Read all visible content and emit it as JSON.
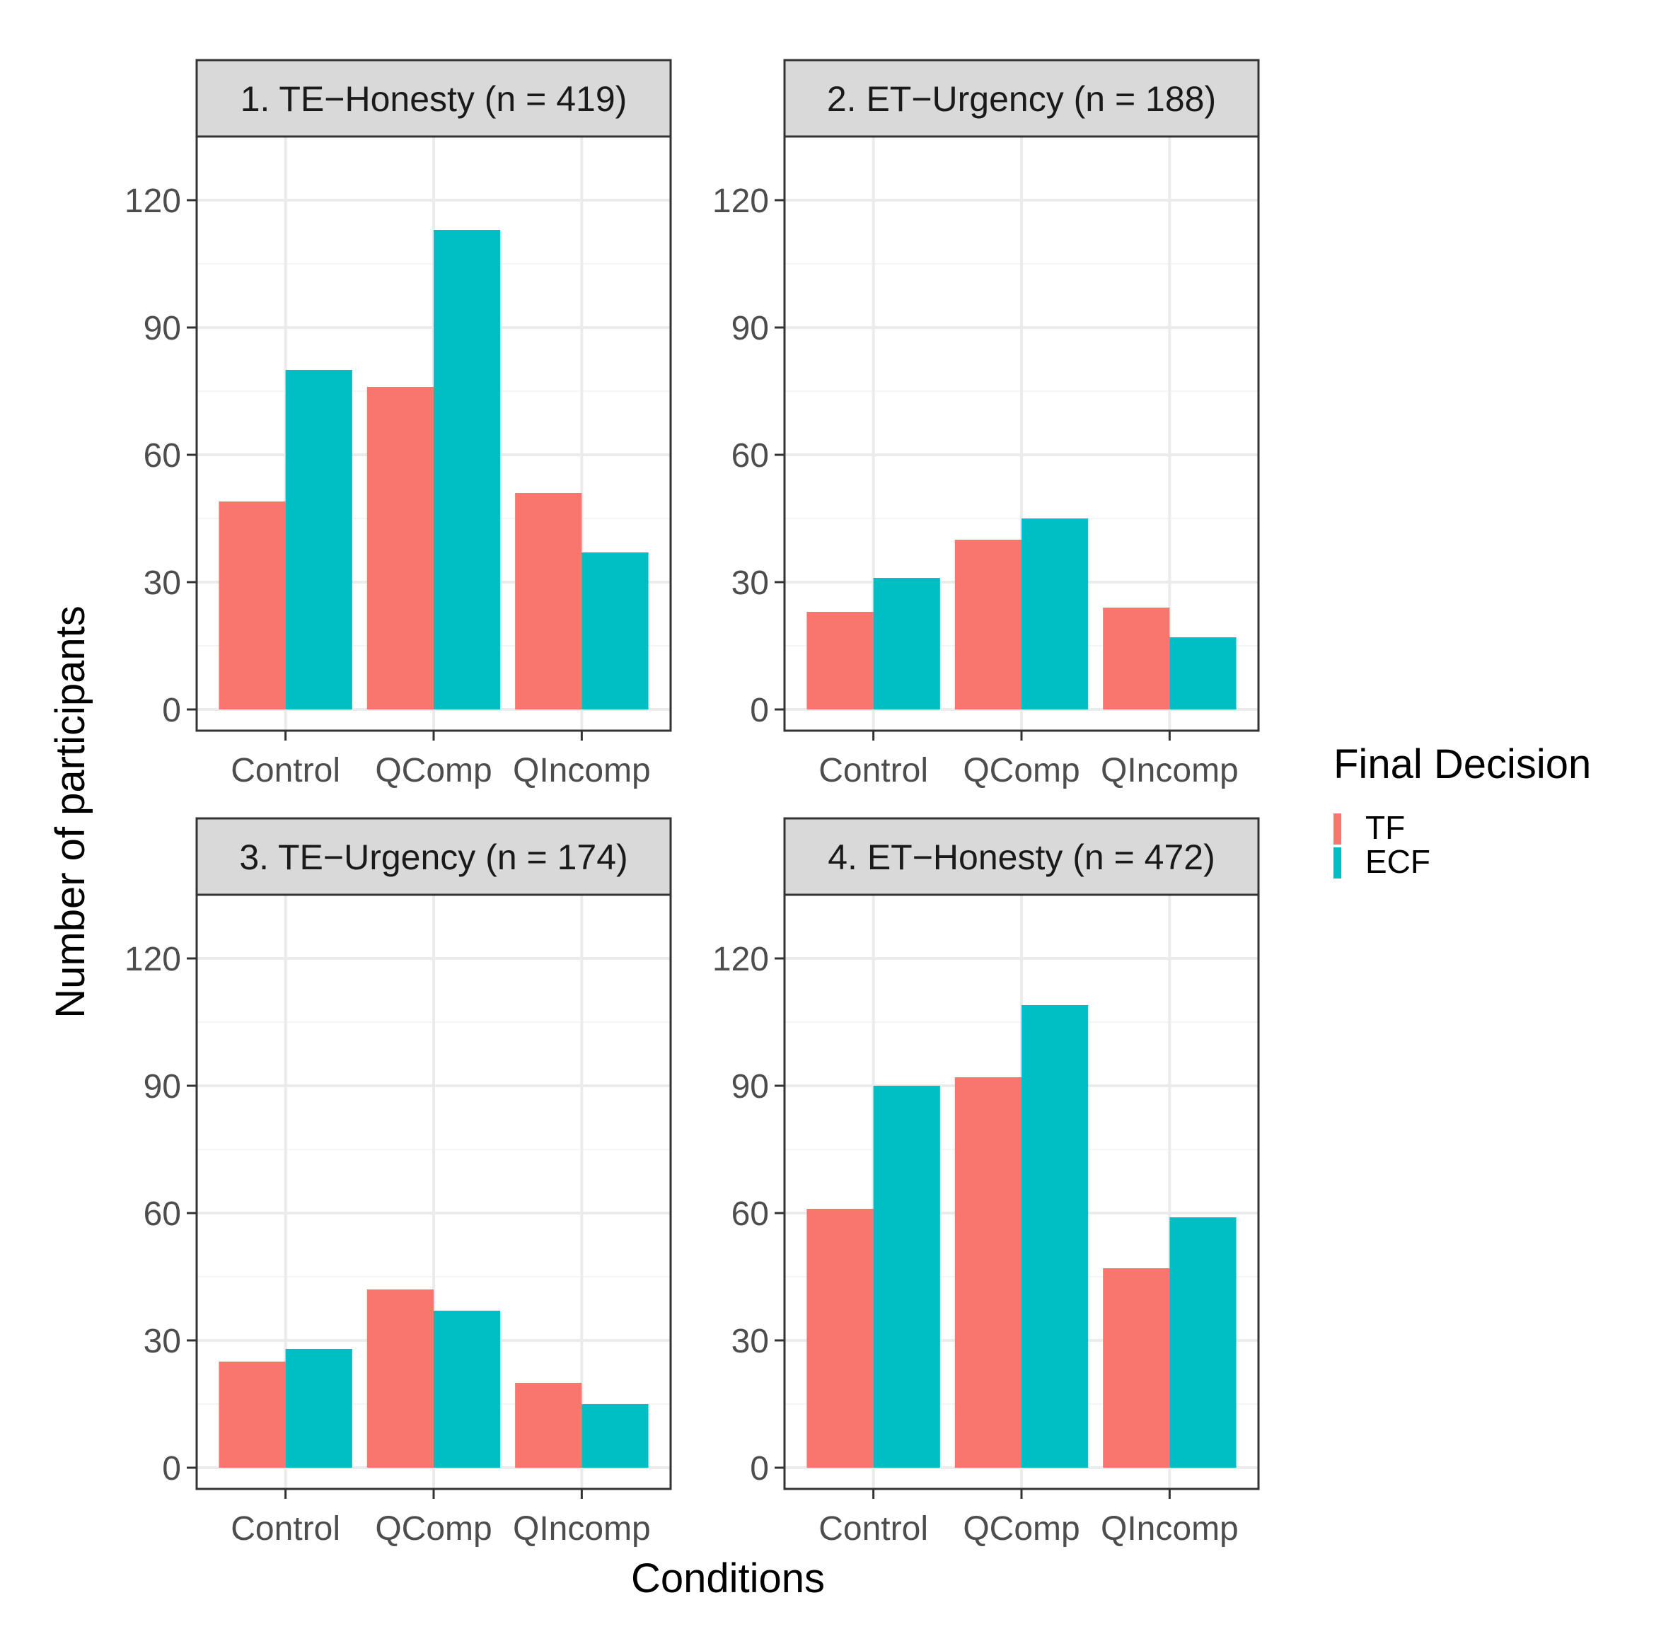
{
  "colors": {
    "TF": "#F8766D",
    "ECF": "#00BFC4",
    "strip_fill": "#D9D9D9",
    "panel_border": "#333333",
    "grid_major": "#EBEBEB",
    "grid_minor": "#F5F5F5",
    "tick_text": "#4D4D4D",
    "axis_title": "#000000"
  },
  "chart_data": {
    "type": "bar",
    "layout": "facet-grid 2x2, grouped bars",
    "xlabel": "Conditions",
    "ylabel": "Number of participants",
    "ylim": [
      -5,
      135
    ],
    "yticks": [
      0,
      30,
      60,
      90,
      120
    ],
    "yticks_labels": [
      "0",
      "30",
      "60",
      "90",
      "120"
    ],
    "grid": true,
    "categories": [
      "Control",
      "QComp",
      "QIncomp"
    ],
    "legend": {
      "title": "Final Decision",
      "position": "right",
      "entries": [
        "TF",
        "ECF"
      ]
    },
    "panels": [
      {
        "title": "1. TE−Honesty (n = 419)",
        "series": [
          {
            "name": "TF",
            "values": [
              49,
              76,
              51
            ]
          },
          {
            "name": "ECF",
            "values": [
              80,
              113,
              37
            ]
          }
        ]
      },
      {
        "title": "2. ET−Urgency (n = 188)",
        "series": [
          {
            "name": "TF",
            "values": [
              23,
              40,
              24
            ]
          },
          {
            "name": "ECF",
            "values": [
              31,
              45,
              17
            ]
          }
        ]
      },
      {
        "title": "3. TE−Urgency (n = 174)",
        "series": [
          {
            "name": "TF",
            "values": [
              25,
              42,
              20
            ]
          },
          {
            "name": "ECF",
            "values": [
              28,
              37,
              15
            ]
          }
        ]
      },
      {
        "title": "4. ET−Honesty (n = 472)",
        "series": [
          {
            "name": "TF",
            "values": [
              61,
              92,
              47
            ]
          },
          {
            "name": "ECF",
            "values": [
              90,
              109,
              59
            ]
          }
        ]
      }
    ]
  }
}
